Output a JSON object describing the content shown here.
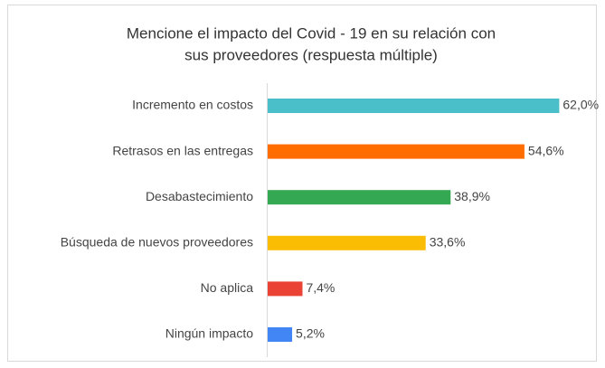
{
  "chart_data": {
    "type": "hbar",
    "title": [
      "Mencione el impacto del Covid - 19 en su relación con",
      "sus proveedores (respuesta múltiple)"
    ],
    "categories": [
      "Incremento en costos",
      "Retrasos en las entregas",
      "Desabastecimiento",
      "Búsqueda de nuevos proveedores",
      "No aplica",
      "Ningún impacto"
    ],
    "values": [
      62.0,
      54.6,
      38.9,
      33.6,
      7.4,
      5.2
    ],
    "value_labels": [
      "62,0%",
      "54,6%",
      "38,9%",
      "33,6%",
      "7,4%",
      "5,2%"
    ],
    "colors": [
      "#4bbfc9",
      "#ff6d00",
      "#34a853",
      "#fbbc04",
      "#ea4335",
      "#4285f4"
    ],
    "xlim": [
      0,
      70
    ]
  }
}
